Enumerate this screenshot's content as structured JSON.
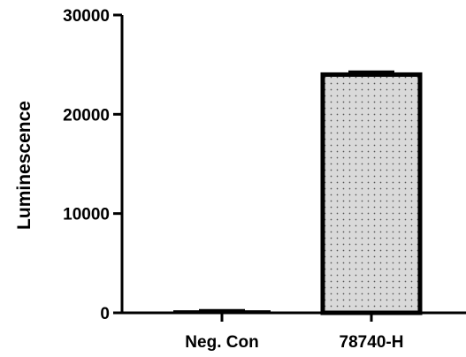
{
  "chart_data": {
    "type": "bar",
    "categories": [
      "Neg. Con",
      "78740-H"
    ],
    "values": [
      120,
      24000
    ],
    "errors": [
      150,
      300
    ],
    "title": "",
    "xlabel": "",
    "ylabel": "Luminescence",
    "ylim": [
      0,
      30000
    ],
    "yticks": [
      0,
      10000,
      20000,
      30000
    ],
    "yticks_labels": [
      "0",
      "10000",
      "20000",
      "30000"
    ],
    "grid": false,
    "bar_fill": "#d9d9d9",
    "bar_pattern": "dotted",
    "bar_edge_color": "#000000"
  }
}
